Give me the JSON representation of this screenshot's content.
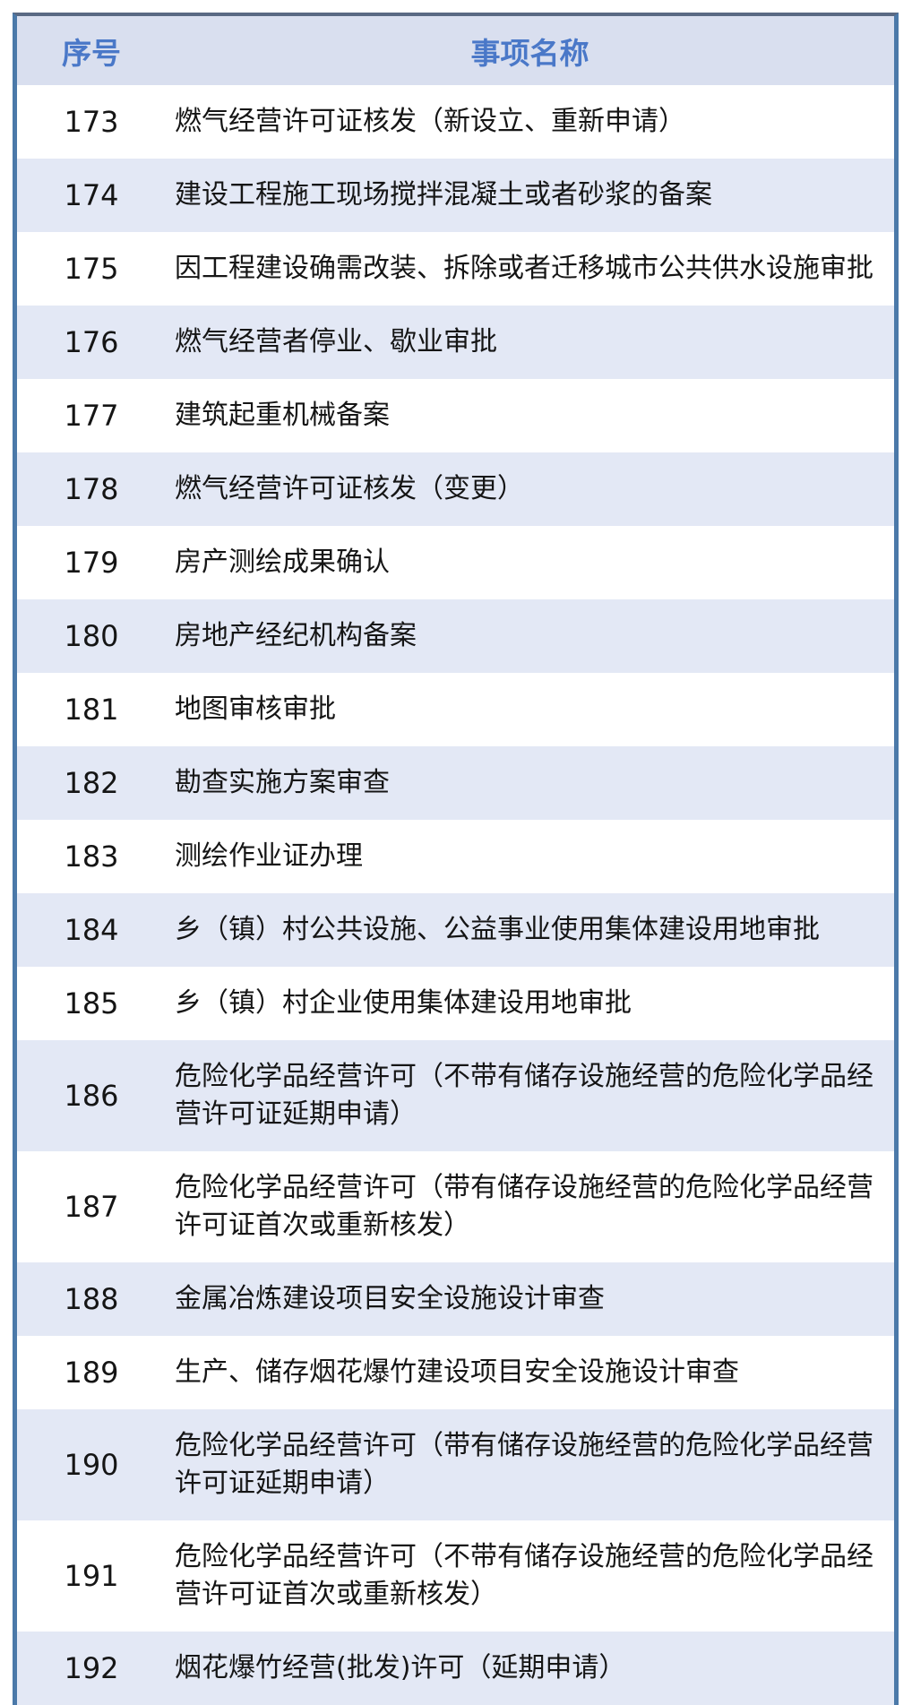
{
  "table": {
    "header": {
      "col_index": "序号",
      "col_name": "事项名称"
    },
    "rows": [
      {
        "index": "173",
        "name": "燃气经营许可证核发（新设立、重新申请）"
      },
      {
        "index": "174",
        "name": "建设工程施工现场搅拌混凝土或者砂浆的备案"
      },
      {
        "index": "175",
        "name": "因工程建设确需改装、拆除或者迁移城市公共供水设施审批"
      },
      {
        "index": "176",
        "name": "燃气经营者停业、歇业审批"
      },
      {
        "index": "177",
        "name": "建筑起重机械备案"
      },
      {
        "index": "178",
        "name": "燃气经营许可证核发（变更）"
      },
      {
        "index": "179",
        "name": "房产测绘成果确认"
      },
      {
        "index": "180",
        "name": "房地产经纪机构备案"
      },
      {
        "index": "181",
        "name": "地图审核审批"
      },
      {
        "index": "182",
        "name": "勘查实施方案审查"
      },
      {
        "index": "183",
        "name": "测绘作业证办理"
      },
      {
        "index": "184",
        "name": "乡（镇）村公共设施、公益事业使用集体建设用地审批"
      },
      {
        "index": "185",
        "name": "乡（镇）村企业使用集体建设用地审批"
      },
      {
        "index": "186",
        "name": "危险化学品经营许可（不带有储存设施经营的危险化学品经营许可证延期申请）"
      },
      {
        "index": "187",
        "name": "危险化学品经营许可（带有储存设施经营的危险化学品经营许可证首次或重新核发）"
      },
      {
        "index": "188",
        "name": "金属冶炼建设项目安全设施设计审查"
      },
      {
        "index": "189",
        "name": "生产、储存烟花爆竹建设项目安全设施设计审查"
      },
      {
        "index": "190",
        "name": "危险化学品经营许可（带有储存设施经营的危险化学品经营许可证延期申请）"
      },
      {
        "index": "191",
        "name": "危险化学品经营许可（不带有储存设施经营的危险化学品经营许可证首次或重新核发）"
      },
      {
        "index": "192",
        "name": "烟花爆竹经营(批发)许可（延期申请）"
      }
    ]
  },
  "colors": {
    "border_top": "#5a6983",
    "border_side": "#4b79a9",
    "header_bg": "#d9dfef",
    "header_text": "#4a78c8",
    "row_alt_bg": "#e3e8f5",
    "row_text": "#151515"
  }
}
